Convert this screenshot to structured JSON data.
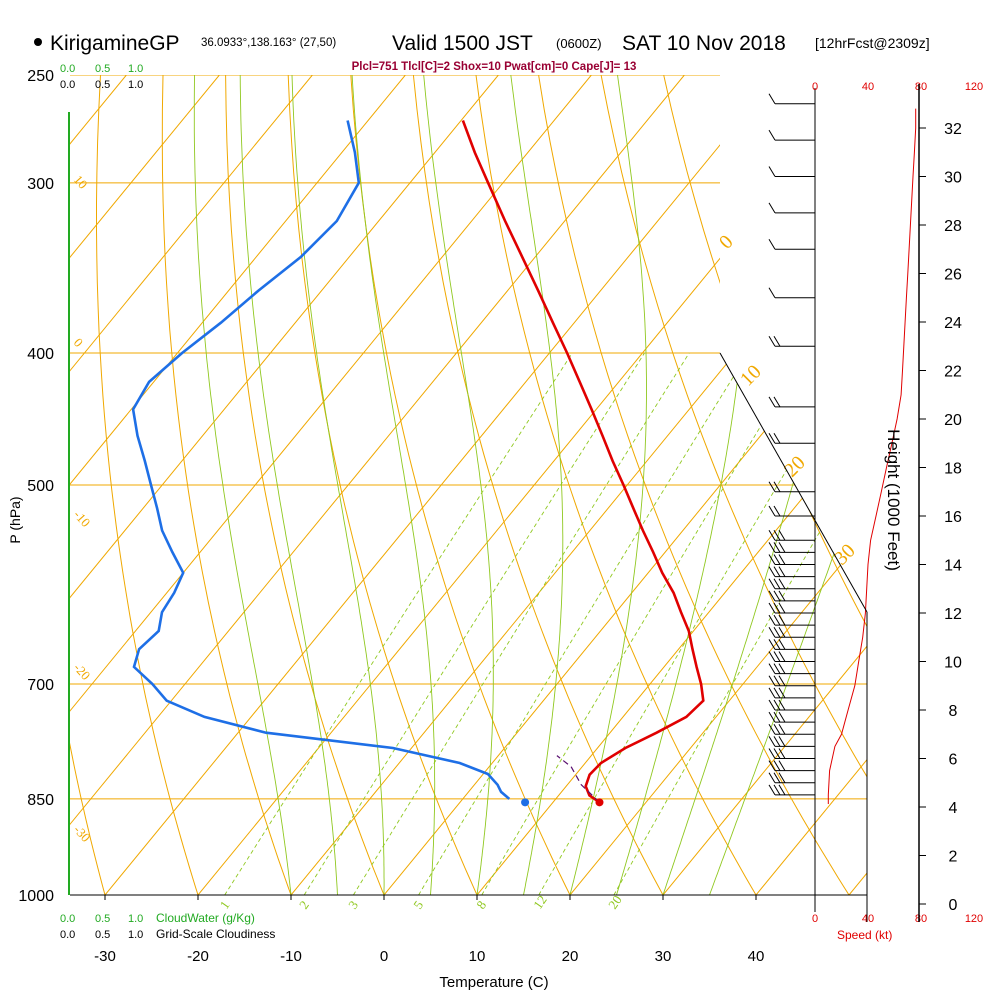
{
  "header": {
    "station": "KirigamineGP",
    "coords": "36.0933°,138.163° (27,50)",
    "valid_main": "Valid 1500 JST",
    "valid_z": "(0600Z)",
    "date": "SAT 10 Nov 2018",
    "forecast": "[12hrFcst@2309z]",
    "indices": "Plcl=751 Tlcl[C]=2 Shox=10 Pwat[cm]=0 Cape[J]= 13"
  },
  "colors": {
    "temperature": "#e00000",
    "dewpoint": "#1e6fe6",
    "isotherm": "#f0a800",
    "mixing_ratio": "#90c820",
    "cloud_green": "#22aa22",
    "speed": "#e00000",
    "indices": "#990033"
  },
  "chart_data": {
    "type": "skew-t log-p",
    "xlabel": "Temperature (C)",
    "ylabel": "P (hPa)",
    "right_axis_label": "Height (1000 Feet)",
    "x_ticks": [
      "-30",
      "-20",
      "-10",
      "0",
      "10",
      "20",
      "30",
      "40"
    ],
    "x_tick_values": [
      -30,
      -20,
      -10,
      0,
      10,
      20,
      30,
      40
    ],
    "pressure_ticks": [
      "250",
      "300",
      "400",
      "500",
      "700",
      "850",
      "1000"
    ],
    "pressure_tick_values": [
      250,
      300,
      400,
      500,
      700,
      850,
      1000
    ],
    "height_ticks": [
      "0",
      "2",
      "4",
      "6",
      "8",
      "10",
      "12",
      "14",
      "16",
      "18",
      "20",
      "22",
      "24",
      "26",
      "28",
      "30",
      "32"
    ],
    "height_tick_values": [
      0,
      2,
      4,
      6,
      8,
      10,
      12,
      14,
      16,
      18,
      20,
      22,
      24,
      26,
      28,
      30,
      32
    ],
    "cloudwater_label": "CloudWater (g/Kg)",
    "cloudwater_ticks": [
      "0.0",
      "0.5",
      "1.0"
    ],
    "cloudiness_label": "Grid-Scale Cloudiness",
    "cloudiness_ticks": [
      "0.0",
      "0.5",
      "1.0"
    ],
    "speed_label": "Speed (kt)",
    "speed_ticks": [
      "0",
      "40",
      "80",
      "120"
    ],
    "speed_tick_values": [
      0,
      40,
      80,
      120
    ],
    "mixing_ratio_labels": [
      "1",
      "2",
      "3",
      "5",
      "8",
      "12",
      "20"
    ],
    "mixing_ratio_values": [
      1,
      2,
      3,
      5,
      8,
      12,
      20
    ],
    "adiabat_labels_left": [
      "10",
      "0",
      "-10",
      "-20",
      "-30"
    ],
    "adiabat_values_left": [
      10,
      0,
      -10,
      -20,
      -30
    ],
    "adiabat_labels_right": [
      "0",
      "10",
      "20",
      "30"
    ],
    "adiabat_values_right": [
      0,
      10,
      20,
      30
    ],
    "temperature_profile": {
      "name": "Temperature",
      "pressure": [
        855,
        845,
        832,
        816,
        800,
        780,
        760,
        740,
        720,
        700,
        680,
        660,
        640,
        620,
        600,
        580,
        560,
        540,
        520,
        500,
        480,
        460,
        440,
        420,
        400,
        380,
        360,
        340,
        320,
        300,
        285,
        270
      ],
      "temperature": [
        15,
        13.3,
        12.1,
        11.5,
        11.7,
        13.0,
        15.0,
        16.8,
        17.2,
        15.5,
        13.5,
        11.5,
        9.5,
        7.0,
        4.5,
        1.5,
        -1.3,
        -4.3,
        -7.3,
        -10.4,
        -13.7,
        -17.0,
        -20.5,
        -24.2,
        -28.1,
        -32.3,
        -36.7,
        -41.4,
        -46.4,
        -51.6,
        -55.7,
        -59.8
      ]
    },
    "dewpoint_profile": {
      "name": "Dewpoint",
      "pressure": [
        850,
        840,
        830,
        815,
        800,
        780,
        760,
        740,
        720,
        700,
        680,
        660,
        640,
        620,
        600,
        580,
        560,
        540,
        520,
        500,
        480,
        460,
        440,
        420,
        400,
        380,
        360,
        340,
        320,
        300,
        285,
        270
      ],
      "temperature": [
        5,
        3.5,
        2.5,
        0.5,
        -3.5,
        -12,
        -27,
        -35,
        -40.5,
        -43.5,
        -47,
        -48,
        -47.5,
        -48.8,
        -49.2,
        -50,
        -53,
        -56,
        -58.5,
        -61.2,
        -64,
        -67,
        -69.8,
        -70.5,
        -69.5,
        -68,
        -66.8,
        -65.2,
        -64.5,
        -65.5,
        -68.6,
        -72.2
      ]
    },
    "surface_temperature": 15,
    "surface_dewpoint": 7,
    "surface_pressure": 855,
    "parcel_path": {
      "pressure": [
        855,
        830,
        805,
        790
      ],
      "temperature": [
        15,
        11.5,
        8.8,
        6.3
      ]
    },
    "wind_speed_profile": {
      "name": "Speed",
      "height_kft": [
        4.5,
        5.5,
        6.5,
        7,
        8,
        9,
        10,
        11,
        12,
        13,
        14,
        15,
        16,
        17,
        18,
        19,
        20,
        21,
        22,
        23,
        24,
        25,
        26,
        27,
        28,
        29,
        30,
        31,
        32,
        32.8
      ],
      "speed_kt": [
        10,
        11,
        15,
        20,
        25,
        30,
        33,
        36,
        38,
        39,
        40,
        42,
        46,
        50,
        54,
        58,
        62,
        65,
        66,
        67,
        68,
        69,
        70,
        71,
        72,
        73,
        74,
        75,
        76,
        76
      ]
    },
    "wind_barb_heights_kft": [
      4.5,
      5,
      5.5,
      6,
      6.5,
      7,
      7.5,
      8,
      8.5,
      9,
      9.5,
      10,
      10.5,
      11,
      11.5,
      12,
      12.5,
      13,
      13.5,
      14,
      14.5,
      15,
      16,
      17,
      19,
      20.5,
      23,
      25,
      27,
      28.5,
      30,
      31.5,
      33
    ]
  }
}
